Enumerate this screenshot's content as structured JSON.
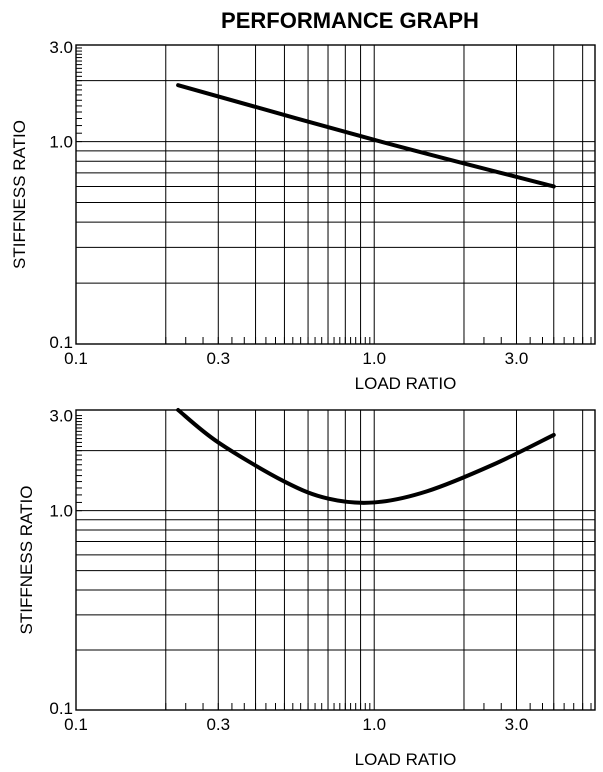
{
  "title": "PERFORMANCE GRAPH",
  "chart_data": [
    {
      "type": "line",
      "x_scale": "log",
      "y_scale": "log",
      "xlim": [
        0.1,
        5.5
      ],
      "ylim": [
        0.1,
        3.0
      ],
      "xlabel": "LOAD RATIO",
      "ylabel": "STIFFNESS RATIO",
      "x_tick_labels": [
        "0.1",
        "0.3",
        "1.0",
        "3.0"
      ],
      "x_tick_values": [
        0.1,
        0.3,
        1.0,
        3.0
      ],
      "y_tick_labels": [
        "0.1",
        "1.0",
        "3.0"
      ],
      "y_tick_values": [
        0.1,
        1.0,
        3.0
      ],
      "x_gridlines": [
        0.2,
        0.3,
        0.4,
        0.5,
        0.6,
        0.7,
        0.8,
        0.9,
        1.0,
        2.0,
        3.0,
        4.0,
        5.0
      ],
      "y_gridlines": [
        0.2,
        0.3,
        0.4,
        0.5,
        0.6,
        0.7,
        0.8,
        0.9,
        1.0,
        2.0
      ],
      "grid": true,
      "series": [
        {
          "x": [
            0.22,
            1.0,
            4.0
          ],
          "y": [
            1.9,
            1.02,
            0.6
          ]
        }
      ]
    },
    {
      "type": "line",
      "x_scale": "log",
      "y_scale": "log",
      "xlim": [
        0.1,
        5.5
      ],
      "ylim": [
        0.1,
        3.2
      ],
      "xlabel": "LOAD RATIO",
      "ylabel": "STIFFNESS RATIO",
      "x_tick_labels": [
        "0.1",
        "0.3",
        "1.0",
        "3.0"
      ],
      "x_tick_values": [
        0.1,
        0.3,
        1.0,
        3.0
      ],
      "y_tick_labels": [
        "0.1",
        "1.0",
        "3.0"
      ],
      "y_tick_values": [
        0.1,
        1.0,
        3.0
      ],
      "x_gridlines": [
        0.2,
        0.3,
        0.4,
        0.5,
        0.6,
        0.7,
        0.8,
        0.9,
        1.0,
        2.0,
        3.0,
        4.0,
        5.0
      ],
      "y_gridlines": [
        0.2,
        0.3,
        0.4,
        0.5,
        0.6,
        0.7,
        0.8,
        0.9,
        1.0,
        2.0
      ],
      "grid": true,
      "series": [
        {
          "x": [
            0.22,
            0.3,
            0.5,
            0.7,
            1.0,
            1.5,
            2.5,
            4.0
          ],
          "y": [
            3.2,
            2.2,
            1.4,
            1.15,
            1.1,
            1.25,
            1.7,
            2.4
          ]
        }
      ]
    }
  ]
}
